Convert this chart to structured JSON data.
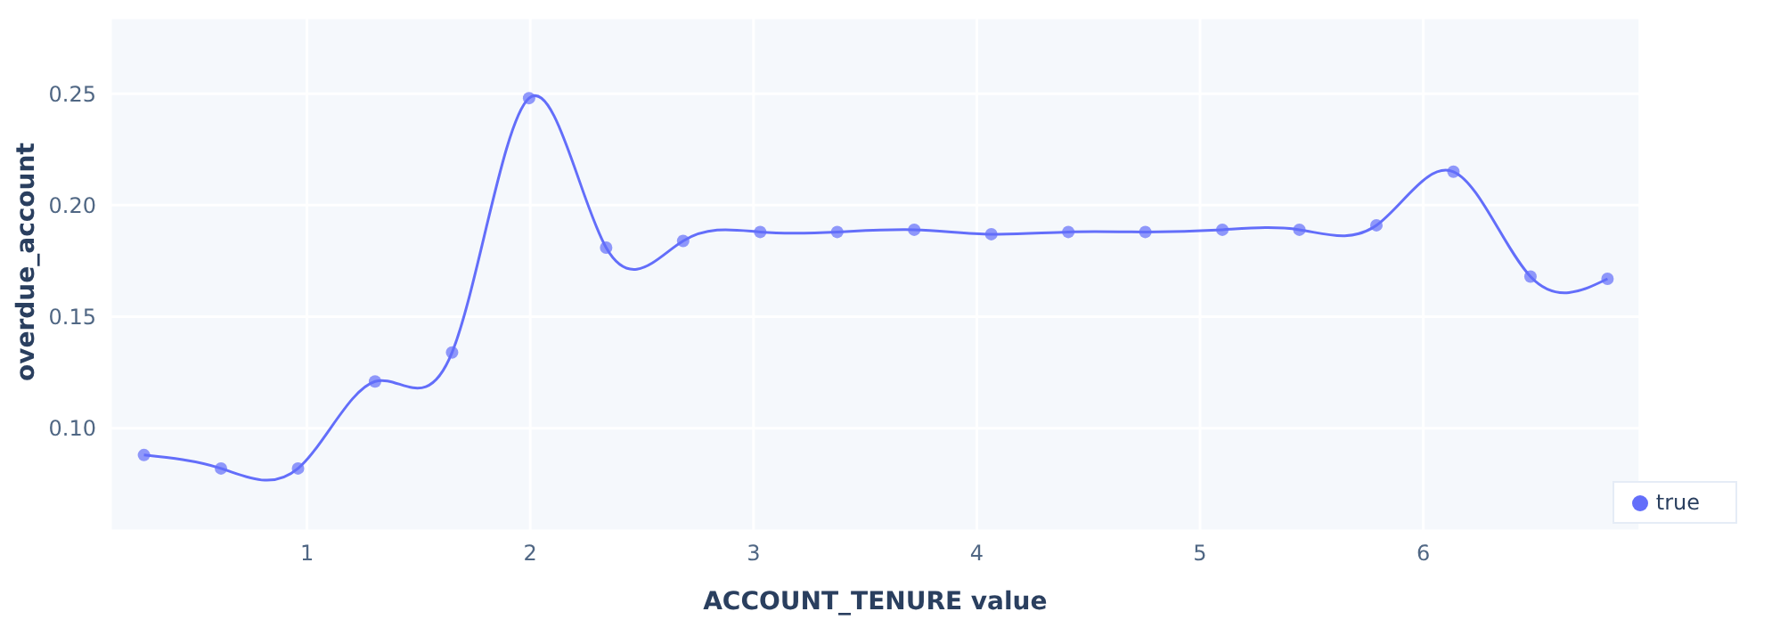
{
  "chart_data": {
    "type": "line",
    "xlabel": "ACCOUNT_TENURE value",
    "ylabel": "overdue_account",
    "x": [
      0.27,
      0.615,
      0.96,
      1.305,
      1.65,
      1.995,
      2.34,
      2.685,
      3.03,
      3.375,
      3.72,
      4.065,
      4.41,
      4.755,
      5.1,
      5.445,
      5.79,
      6.135,
      6.48,
      6.825
    ],
    "series": [
      {
        "name": "true",
        "color": "#636efa",
        "values": [
          0.088,
          0.082,
          0.082,
          0.121,
          0.134,
          0.248,
          0.181,
          0.184,
          0.188,
          0.188,
          0.189,
          0.187,
          0.188,
          0.188,
          0.189,
          0.189,
          0.191,
          0.215,
          0.168,
          0.167
        ]
      }
    ],
    "xlim": [
      0.12,
      6.97
    ],
    "xticks": [
      1,
      2,
      3,
      4,
      5,
      6
    ],
    "ylim": [
      0.054,
      0.284
    ],
    "yticks": [
      {
        "value": 0.1,
        "label": "0.10"
      },
      0.15,
      {
        "value": 0.2,
        "label": "0.20"
      },
      0.25
    ],
    "grid": true,
    "legend": "bottom right",
    "marker": "circle",
    "line_style": "solid"
  }
}
